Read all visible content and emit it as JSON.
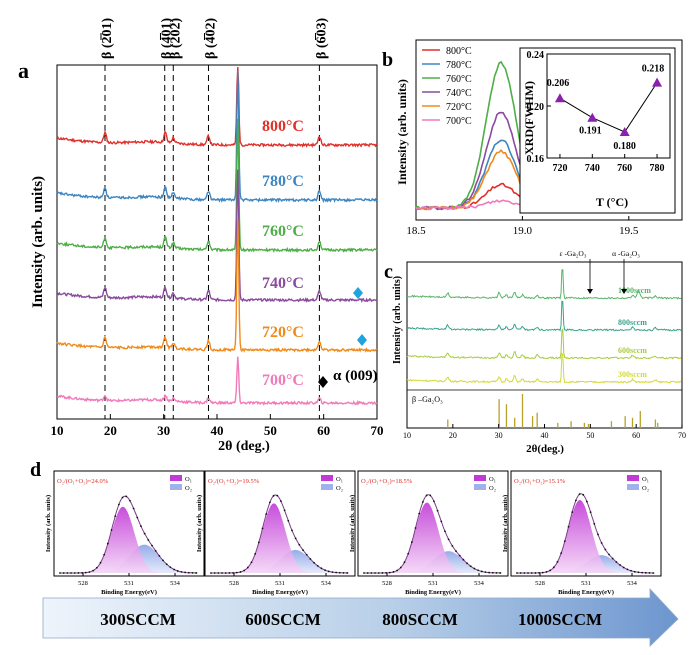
{
  "chart_data": [
    {
      "panel": "a",
      "type": "line",
      "ylabel": "Intensity (arb. units)",
      "xlabel": "2θ (deg.)",
      "xlim": [
        10,
        70
      ],
      "xticks": [
        "10",
        "20",
        "30",
        "40",
        "50",
        "60",
        "70"
      ],
      "reference_lines": [
        {
          "x": 19.0,
          "label": "β (2̅01)"
        },
        {
          "x": 30.2,
          "label": "β (4̅01)"
        },
        {
          "x": 31.8,
          "label": "β (202)"
        },
        {
          "x": 38.4,
          "label": "β (4̅02)"
        },
        {
          "x": 59.2,
          "label": "β (6̅03)"
        }
      ],
      "series": [
        {
          "name": "800°C",
          "color": "#e0302a"
        },
        {
          "name": "780°C",
          "color": "#3d86c2"
        },
        {
          "name": "760°C",
          "color": "#4fae48"
        },
        {
          "name": "740°C",
          "color": "#8a4a9e"
        },
        {
          "name": "720°C",
          "color": "#f08a1c"
        },
        {
          "name": "700°C",
          "color": "#f07aba"
        }
      ],
      "peak_positions": [
        19.0,
        30.3,
        31.8,
        38.4,
        43.9,
        59.2
      ],
      "annotations": [
        "α (009)"
      ]
    },
    {
      "panel": "b",
      "type": "line",
      "ylabel": "Intensity (arb. units)",
      "xlim": [
        18.5,
        19.75
      ],
      "xticks": [
        "18.5",
        "19.0",
        "19.5"
      ],
      "peak_center": 18.9,
      "series": [
        {
          "name": "800°C",
          "color": "#e0302a",
          "peak": 0.16
        },
        {
          "name": "780°C",
          "color": "#3d86c2",
          "peak": 0.47
        },
        {
          "name": "760°C",
          "color": "#4fae48",
          "peak": 1.0
        },
        {
          "name": "740°C",
          "color": "#8a4a9e",
          "peak": 0.66
        },
        {
          "name": "720°C",
          "color": "#f08a1c",
          "peak": 0.39
        },
        {
          "name": "700°C",
          "color": "#f07aba",
          "peak": 0.05
        }
      ],
      "inset": {
        "type": "scatter",
        "xlabel": "T (°C)",
        "ylabel": "XRD(FWHM)",
        "x": [
          720,
          740,
          760,
          780
        ],
        "y": [
          0.206,
          0.191,
          0.18,
          0.218
        ],
        "labels": [
          "0.206",
          "0.191",
          "0.180",
          "0.218"
        ],
        "xticks": [
          "720",
          "740",
          "760",
          "780"
        ],
        "yticks": [
          "0.16",
          "0.20",
          "0.24"
        ],
        "ylim": [
          0.16,
          0.24
        ]
      }
    },
    {
      "panel": "c",
      "type": "line",
      "ylabel": "Intensity (arb. units)",
      "xlabel": "2θ(deg.)",
      "xlim": [
        10,
        70
      ],
      "xticks": [
        "10",
        "20",
        "30",
        "40",
        "50",
        "60",
        "70"
      ],
      "series": [
        {
          "name": "1000sccm",
          "color": "#58b46a"
        },
        {
          "name": "800sccm",
          "color": "#3aa38a"
        },
        {
          "name": "600sccm",
          "color": "#a8cc3c"
        },
        {
          "name": "300sccm",
          "color": "#d4d83a"
        }
      ],
      "arrows": [
        "ε -Ga₂O₃",
        "α -Ga₂O₃"
      ],
      "reference": {
        "label": "β –Ga₂O₃",
        "color": "#b8a22a",
        "positions": [
          18.9,
          30.1,
          31.7,
          33.5,
          35.2,
          37.4,
          38.4,
          42.9,
          45.8,
          48.7,
          49.6,
          54.6,
          57.6,
          59.2,
          60.9,
          64.2,
          64.7,
          70.0
        ],
        "heights": [
          0.25,
          0.85,
          0.7,
          0.3,
          1.0,
          0.35,
          0.45,
          0.15,
          0.2,
          0.15,
          0.12,
          0.2,
          0.35,
          0.3,
          0.5,
          0.25,
          0.15,
          0.1
        ]
      }
    }
  ],
  "labels": {
    "panel_a": "a",
    "panel_b": "b",
    "panel_c": "c",
    "panel_d": "d"
  },
  "xps": {
    "xlabel": "Binding Energy(eV)",
    "ylabel": "Intensity (arb. units)",
    "xticks": [
      "528",
      "531",
      "534"
    ],
    "legend_i": "O₁",
    "legend_ii": "O₂",
    "panels": [
      {
        "ratio_label": "O₂/(O₁+O₂)=24.0%",
        "ratio": 24.0
      },
      {
        "ratio_label": "O₂/(O₁+O₂)=19.5%",
        "ratio": 19.5
      },
      {
        "ratio_label": "O₂/(O₁+O₂)=18.5%",
        "ratio": 18.5
      },
      {
        "ratio_label": "O₂/(O₁+O₂)=15.1%",
        "ratio": 15.1
      }
    ]
  },
  "flow_arrow": {
    "steps": [
      "300SCCM",
      "600SCCM",
      "800SCCM",
      "1000SCCM"
    ]
  }
}
